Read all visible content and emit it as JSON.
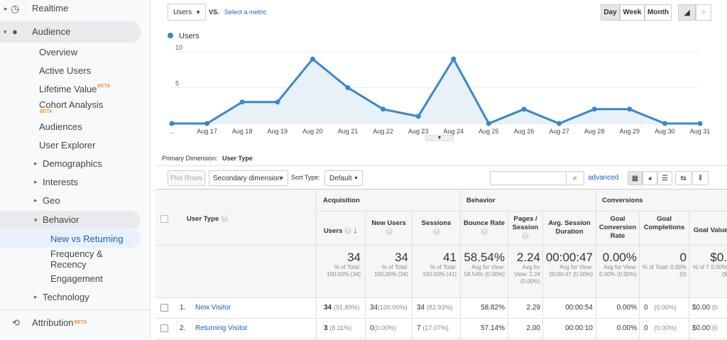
{
  "sidebar": {
    "realtime": "Realtime",
    "audience": "Audience",
    "items": [
      "Overview",
      "Active Users",
      "Lifetime Value",
      "Cohort Analysis",
      "Audiences",
      "User Explorer",
      "Demographics",
      "Interests",
      "Geo",
      "Behavior",
      "New vs Returning",
      "Frequency &",
      "Recency",
      "Engagement",
      "Technology"
    ],
    "beta": "BETA",
    "attribution": "Attribution"
  },
  "toolbar": {
    "metric_select": "Users",
    "vs": "VS.",
    "select_metric": "Select a metric",
    "day": "Day",
    "week": "Week",
    "month": "Month"
  },
  "chart_data": {
    "type": "line",
    "legend": "Users",
    "categories": [
      "...",
      "Aug 17",
      "Aug 18",
      "Aug 19",
      "Aug 20",
      "Aug 21",
      "Aug 22",
      "Aug 23",
      "Aug 24",
      "Aug 25",
      "Aug 26",
      "Aug 27",
      "Aug 28",
      "Aug 29",
      "Aug 30",
      "Aug 31"
    ],
    "values": [
      0,
      0,
      3,
      3,
      9,
      5,
      2,
      1,
      9,
      0,
      2,
      0,
      2,
      2,
      0,
      0
    ],
    "yticks": [
      "10",
      "5"
    ],
    "ylim": [
      0,
      10
    ],
    "color": "#3a87c8"
  },
  "dimension": {
    "label": "Primary Dimension:",
    "value": "User Type"
  },
  "controls": {
    "plot_rows": "Plot Rows",
    "secondary": "Secondary dimension",
    "sort_type_label": "Sort Type:",
    "sort_default": "Default",
    "advanced": "advanced"
  },
  "table": {
    "col_user_type": "User Type",
    "group_acq": "Acquisition",
    "group_beh": "Behavior",
    "group_conv": "Conversions",
    "cols": [
      "Users",
      "New Users",
      "Sessions",
      "Bounce Rate",
      "Pages / Session",
      "Avg. Session Duration",
      "Goal Conversion Rate",
      "Goal Completions",
      "Goal Value"
    ],
    "totals": {
      "users": "34",
      "users_sub": "% of Total: 100.00% (34)",
      "new": "34",
      "new_sub": "% of Total: 100.00% (34)",
      "sessions": "41",
      "sessions_sub": "% of Total: 100.00% (41)",
      "bounce": "58.54%",
      "bounce_sub": "Avg for View: 58.54% (0.00%)",
      "pages": "2.24",
      "pages_sub": "Avg for View: 2.24 (0.00%)",
      "dur": "00:00:47",
      "dur_sub": "Avg for View: 00:00:47 (0.00%)",
      "conv": "0.00%",
      "conv_sub": "Avg for View: 0.00% (0.00%)",
      "comp": "0",
      "comp_sub": "% of Total: 0.00% (0)",
      "val": "$0.",
      "val_sub": "% of T 0.00% ($"
    },
    "rows": [
      {
        "n": "1.",
        "name": "New Visitor",
        "users": "34",
        "users_pct": "(91.89%)",
        "new": "34",
        "new_pct": "(100.00%)",
        "sessions": "34",
        "sessions_pct": "(82.93%)",
        "bounce": "58.82%",
        "pages": "2.29",
        "dur": "00:00:54",
        "conv": "0.00%",
        "comp": "0",
        "comp_pct": "(0.00%)",
        "val": "$0.00",
        "val_pct": "(0"
      },
      {
        "n": "2.",
        "name": "Returning Visitor",
        "users": "3",
        "users_pct": "(8.11%)",
        "new": "0",
        "new_pct": "(0.00%)",
        "sessions": "7",
        "sessions_pct": "(17.07%)",
        "bounce": "57.14%",
        "pages": "2.00",
        "dur": "00:00:10",
        "conv": "0.00%",
        "comp": "0",
        "comp_pct": "(0.00%)",
        "val": "$0.00",
        "val_pct": "(0"
      }
    ]
  }
}
